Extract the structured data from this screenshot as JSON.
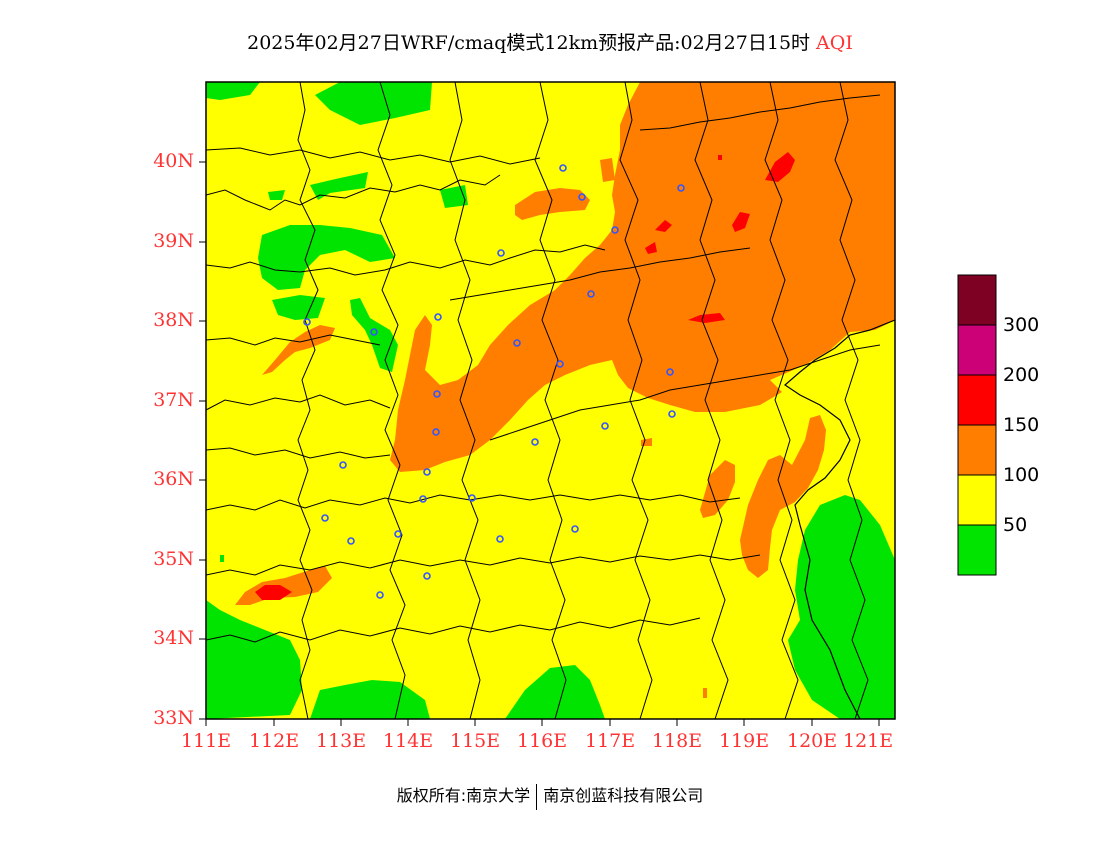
{
  "title": {
    "main": "2025年02月27日WRF/cmaq模式12km预报产品:02月27日15时",
    "product": "AQI"
  },
  "axes": {
    "lat_labels": [
      "40N",
      "39N",
      "38N",
      "37N",
      "36N",
      "35N",
      "34N",
      "33N"
    ],
    "lon_labels": [
      "111E",
      "112E",
      "113E",
      "114E",
      "115E",
      "116E",
      "117E",
      "118E",
      "119E",
      "120E",
      "121E"
    ]
  },
  "legend": {
    "labels": [
      "300",
      "200",
      "150",
      "100",
      "50"
    ],
    "colors": {
      "good": "#00e400",
      "moderate": "#ffff00",
      "usg": "#ff7e00",
      "unhealthy": "#ff0000",
      "very_unhealthy": "#cc0077",
      "hazardous": "#7e0023"
    }
  },
  "footer": {
    "copyright": "版权所有:南京大学",
    "company": "南京创蓝科技有限公司"
  }
}
